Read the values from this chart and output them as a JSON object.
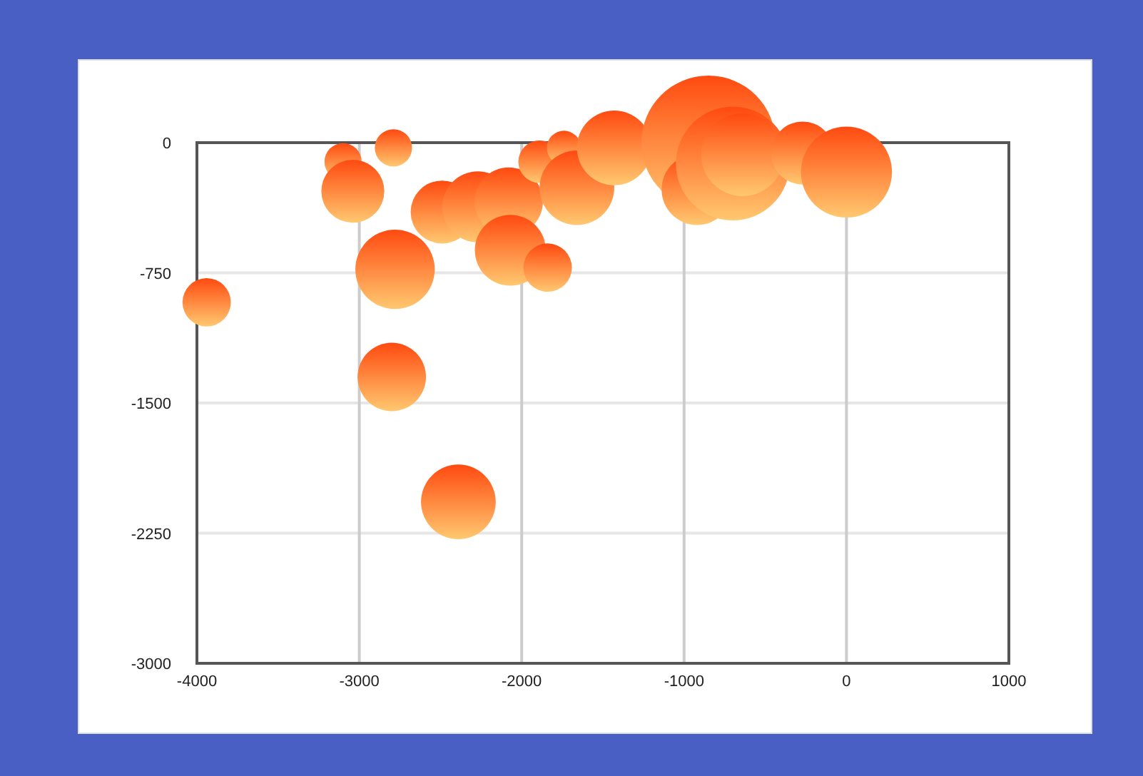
{
  "chart_data": {
    "type": "bubble",
    "x": [
      -3940,
      -3100,
      -3040,
      -2790,
      -2780,
      -2800,
      -2390,
      -2490,
      -2270,
      -2080,
      -2070,
      -1840,
      -1890,
      -1740,
      -1660,
      -1430,
      -850,
      -920,
      -700,
      -640,
      -270,
      0
    ],
    "values": [
      -920,
      -110,
      -280,
      -30,
      -730,
      -1350,
      -2070,
      -400,
      -370,
      -340,
      -620,
      -720,
      -110,
      -30,
      -260,
      -30,
      0,
      -270,
      -120,
      -70,
      -60,
      -170
    ],
    "sizes": [
      0.13,
      0.077,
      0.22,
      0.077,
      0.35,
      0.26,
      0.31,
      0.22,
      0.28,
      0.26,
      0.28,
      0.13,
      0.1,
      0.065,
      0.31,
      0.31,
      1,
      0.28,
      0.72,
      0.38,
      0.22,
      0.46
    ],
    "color": "#ff4a10",
    "xlim": [
      -4000,
      1000
    ],
    "xticks": [
      -4000,
      -3000,
      -2000,
      -1000,
      0,
      1000
    ],
    "ylim": [
      -3000,
      0
    ],
    "yticks": [
      -3000,
      -2250,
      -1500,
      -750,
      0
    ],
    "grid": true
  }
}
